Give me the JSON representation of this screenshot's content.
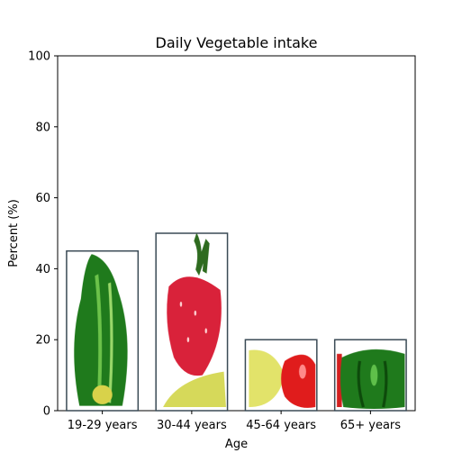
{
  "chart_data": {
    "type": "bar",
    "title": "Daily Vegetable intake",
    "xlabel": "Age",
    "ylabel": "Percent (%)",
    "categories": [
      "19-29 years",
      "30-44 years",
      "45-64 years",
      "65+ years"
    ],
    "values": [
      45,
      50,
      20,
      20
    ],
    "ylim": [
      0,
      100
    ],
    "yticks": [
      "0",
      "20",
      "40",
      "60",
      "80",
      "100"
    ],
    "grid": false,
    "bar_fill": "pictograph (vegetable images)",
    "bar_images": [
      "zucchini",
      "strawberry-and-banana",
      "banana-and-red-pepper",
      "green-bell-pepper"
    ]
  }
}
